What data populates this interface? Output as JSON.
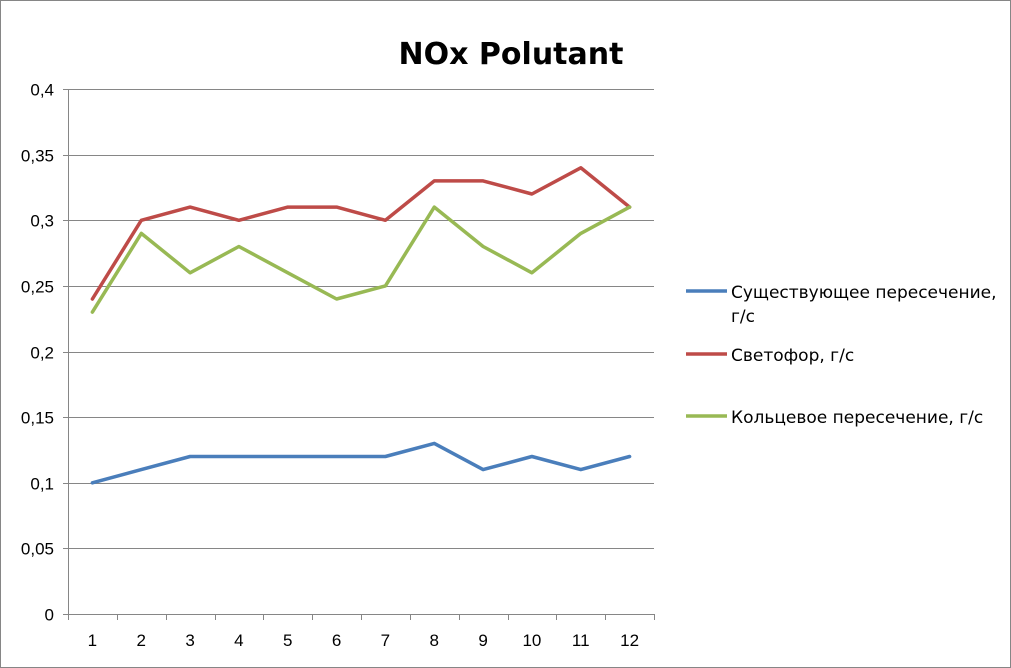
{
  "chart_data": {
    "type": "line",
    "title": "NOx Polutant",
    "xlabel": "",
    "ylabel": "",
    "categories": [
      "1",
      "2",
      "3",
      "4",
      "5",
      "6",
      "7",
      "8",
      "9",
      "10",
      "11",
      "12"
    ],
    "ylim": [
      0,
      0.4
    ],
    "yticks": [
      0,
      0.05,
      0.1,
      0.15,
      0.2,
      0.25,
      0.3,
      0.35,
      0.4
    ],
    "ytick_labels": [
      "0",
      "0,05",
      "0,1",
      "0,15",
      "0,2",
      "0,25",
      "0,3",
      "0,35",
      "0,4"
    ],
    "grid": true,
    "legend_position": "right",
    "series": [
      {
        "name": "Существующее пересечение, г/с",
        "legend_lines": [
          "Существующее пересечение,",
          "г/с"
        ],
        "color": "#4a7ebb",
        "values": [
          0.1,
          0.11,
          0.12,
          0.12,
          0.12,
          0.12,
          0.12,
          0.13,
          0.11,
          0.12,
          0.11,
          0.12
        ]
      },
      {
        "name": "Светофор, г/с",
        "legend_lines": [
          "Светофор, г/с"
        ],
        "color": "#be4b48",
        "values": [
          0.24,
          0.3,
          0.31,
          0.3,
          0.31,
          0.31,
          0.3,
          0.33,
          0.33,
          0.32,
          0.34,
          0.31
        ]
      },
      {
        "name": "Кольцевое пересечение, г/с",
        "legend_lines": [
          "Кольцевое пересечение, г/с"
        ],
        "color": "#98b954",
        "values": [
          0.23,
          0.29,
          0.26,
          0.28,
          0.26,
          0.24,
          0.25,
          0.31,
          0.28,
          0.26,
          0.29,
          0.31
        ]
      }
    ]
  }
}
